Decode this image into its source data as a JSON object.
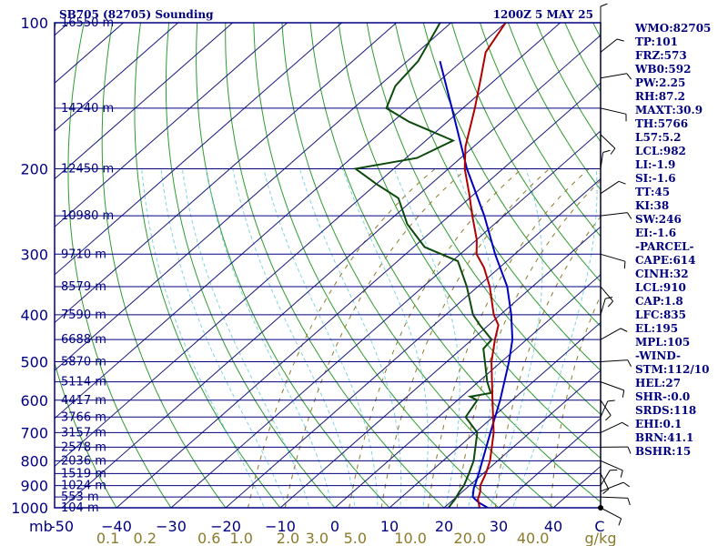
{
  "header": {
    "station": "SB705 (82705) Sounding",
    "time": "1200Z  5 MAY 25"
  },
  "colors": {
    "frame": "#000080",
    "isotherm": "#1a1a80",
    "dry_adiabat": "#2e9b2e",
    "moist_adiabat": "#7fd4e0",
    "mixing_ratio": "#8b7a2a",
    "temperature": "#b00000",
    "dewpoint": "#0b4a0b",
    "parcel": "#0000c0",
    "wind": "#000000"
  },
  "chart_data": {
    "type": "line",
    "diagram": "skew-T log-p",
    "pressure_unit_label": "mb",
    "mixing_ratio_unit_label": "g/kg",
    "pressure_levels": [
      100,
      200,
      300,
      400,
      500,
      600,
      700,
      800,
      900,
      1000
    ],
    "pressure_labels": [
      "100",
      "200",
      "300",
      "400",
      "500",
      "600",
      "700",
      "800",
      "900",
      "1000"
    ],
    "height_levels": [
      {
        "p": 100,
        "label": "16550 m"
      },
      {
        "p": 150,
        "label": "14240 m"
      },
      {
        "p": 200,
        "label": "12450 m"
      },
      {
        "p": 250,
        "label": "10980 m"
      },
      {
        "p": 300,
        "label": "9710 m"
      },
      {
        "p": 350,
        "label": "8579 m"
      },
      {
        "p": 400,
        "label": "7590 m"
      },
      {
        "p": 450,
        "label": "6688 m"
      },
      {
        "p": 500,
        "label": "5870 m"
      },
      {
        "p": 550,
        "label": "5114 m"
      },
      {
        "p": 600,
        "label": "4417 m"
      },
      {
        "p": 650,
        "label": "3766 m"
      },
      {
        "p": 700,
        "label": "3157 m"
      },
      {
        "p": 750,
        "label": "2578 m"
      },
      {
        "p": 800,
        "label": "2036 m"
      },
      {
        "p": 850,
        "label": "1519 m"
      },
      {
        "p": 900,
        "label": "1024 m"
      },
      {
        "p": 950,
        "label": "553 m"
      },
      {
        "p": 1000,
        "label": "104 m"
      }
    ],
    "temperature_ticks": [
      -50,
      -40,
      -30,
      -20,
      -10,
      0,
      10,
      20,
      30,
      40
    ],
    "temperature_tick_labels": [
      "-50",
      "−40",
      "−30",
      "−20",
      "−10",
      "0",
      "10",
      "20",
      "30",
      "40"
    ],
    "temperature_unit_label": "C",
    "mixing_ratio_ticks": [
      0.1,
      0.2,
      0.6,
      1.0,
      2.0,
      3.0,
      5.0,
      10.0,
      20.0,
      40.0
    ],
    "mixing_ratio_tick_labels": [
      "0.1",
      "0.2",
      "0.6",
      "1.0",
      "2.0",
      "3.0",
      "5.0",
      "10.0",
      "20.0",
      "40.0"
    ],
    "temperature_profile": [
      {
        "p": 1010,
        "t": 24.8
      },
      {
        "p": 1000,
        "t": 26.5
      },
      {
        "p": 960,
        "t": 24.4
      },
      {
        "p": 925,
        "t": 23.2
      },
      {
        "p": 900,
        "t": 22.0
      },
      {
        "p": 850,
        "t": 20.5
      },
      {
        "p": 800,
        "t": 18.6
      },
      {
        "p": 700,
        "t": 13.4
      },
      {
        "p": 600,
        "t": 6.4
      },
      {
        "p": 500,
        "t": -1.8
      },
      {
        "p": 450,
        "t": -5.8
      },
      {
        "p": 420,
        "t": -8.2
      },
      {
        "p": 400,
        "t": -11.2
      },
      {
        "p": 350,
        "t": -17.8
      },
      {
        "p": 320,
        "t": -22.8
      },
      {
        "p": 300,
        "t": -27.0
      },
      {
        "p": 280,
        "t": -30.0
      },
      {
        "p": 250,
        "t": -35.8
      },
      {
        "p": 225,
        "t": -41.0
      },
      {
        "p": 200,
        "t": -47.0
      },
      {
        "p": 180,
        "t": -51.5
      },
      {
        "p": 150,
        "t": -57.8
      },
      {
        "p": 130,
        "t": -63.0
      },
      {
        "p": 115,
        "t": -67.5
      },
      {
        "p": 100,
        "t": -70.0
      }
    ],
    "dewpoint_profile": [
      {
        "p": 1010,
        "t": 20.5
      },
      {
        "p": 1000,
        "t": 20.8
      },
      {
        "p": 960,
        "t": 20.2
      },
      {
        "p": 925,
        "t": 19.4
      },
      {
        "p": 900,
        "t": 19.0
      },
      {
        "p": 850,
        "t": 17.4
      },
      {
        "p": 800,
        "t": 15.6
      },
      {
        "p": 700,
        "t": 10.4
      },
      {
        "p": 650,
        "t": 5.0
      },
      {
        "p": 600,
        "t": 3.6
      },
      {
        "p": 590,
        "t": 1.6
      },
      {
        "p": 580,
        "t": 4.6
      },
      {
        "p": 550,
        "t": 1.6
      },
      {
        "p": 500,
        "t": -3.0
      },
      {
        "p": 470,
        "t": -6.0
      },
      {
        "p": 450,
        "t": -6.4
      },
      {
        "p": 420,
        "t": -11.6
      },
      {
        "p": 400,
        "t": -15.0
      },
      {
        "p": 350,
        "t": -22.0
      },
      {
        "p": 310,
        "t": -29.0
      },
      {
        "p": 290,
        "t": -38.0
      },
      {
        "p": 260,
        "t": -46.0
      },
      {
        "p": 230,
        "t": -53.0
      },
      {
        "p": 215,
        "t": -60.0
      },
      {
        "p": 200,
        "t": -67.0
      },
      {
        "p": 190,
        "t": -58.0
      },
      {
        "p": 175,
        "t": -55.0
      },
      {
        "p": 160,
        "t": -67.0
      },
      {
        "p": 150,
        "t": -74.0
      },
      {
        "p": 135,
        "t": -77.0
      },
      {
        "p": 120,
        "t": -78.0
      },
      {
        "p": 100,
        "t": -82.0
      }
    ],
    "parcel_profile": [
      {
        "p": 1000,
        "t": 28.0
      },
      {
        "p": 975,
        "t": 25.2
      },
      {
        "p": 950,
        "t": 23.0
      },
      {
        "p": 910,
        "t": 21.3
      },
      {
        "p": 900,
        "t": 21.0
      },
      {
        "p": 850,
        "t": 19.2
      },
      {
        "p": 800,
        "t": 17.2
      },
      {
        "p": 700,
        "t": 12.8
      },
      {
        "p": 600,
        "t": 7.8
      },
      {
        "p": 500,
        "t": 1.4
      },
      {
        "p": 450,
        "t": -2.6
      },
      {
        "p": 400,
        "t": -8.0
      },
      {
        "p": 350,
        "t": -14.6
      },
      {
        "p": 300,
        "t": -23.6
      },
      {
        "p": 250,
        "t": -33.6
      },
      {
        "p": 200,
        "t": -46.6
      },
      {
        "p": 150,
        "t": -62.0
      },
      {
        "p": 120,
        "t": -74.0
      }
    ],
    "wind_barbs": [
      {
        "p": 100
      },
      {
        "p": 115
      },
      {
        "p": 130
      },
      {
        "p": 150
      },
      {
        "p": 170
      },
      {
        "p": 200
      },
      {
        "p": 225
      },
      {
        "p": 250
      },
      {
        "p": 300
      },
      {
        "p": 350
      },
      {
        "p": 400
      },
      {
        "p": 450
      },
      {
        "p": 500
      },
      {
        "p": 550
      },
      {
        "p": 600
      },
      {
        "p": 650
      },
      {
        "p": 700
      },
      {
        "p": 750
      },
      {
        "p": 800
      },
      {
        "p": 850
      },
      {
        "p": 900
      },
      {
        "p": 925
      },
      {
        "p": 950
      },
      {
        "p": 1000
      }
    ]
  },
  "indices": [
    "WMO:82705",
    "TP:101",
    "FRZ:573",
    "WB0:592",
    "PW:2.25",
    "RH:87.2",
    "MAXT:30.9",
    "TH:5766",
    "L57:5.2",
    "LCL:982",
    "LI:-1.9",
    "SI:-1.6",
    "TT:45",
    "KI:38",
    "SW:246",
    "EI:-1.6",
    "-PARCEL-",
    "CAPE:614",
    "CINH:32",
    "LCL:910",
    "CAP:1.8",
    "LFC:835",
    "EL:195",
    "MPL:105",
    "-WIND-",
    "STM:112/10",
    "HEL:27",
    "SHR-:0.0",
    "SRDS:118",
    "EHI:0.1",
    "BRN:41.1",
    "BSHR:15"
  ]
}
